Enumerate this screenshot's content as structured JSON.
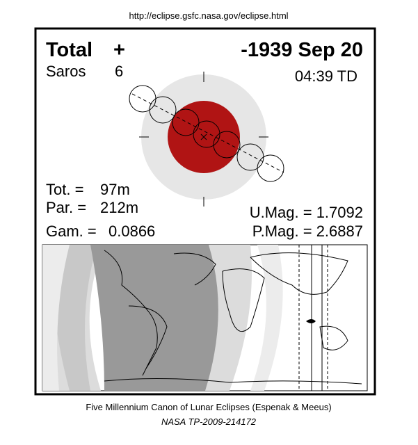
{
  "url": "http://eclipse.gsfc.nasa.gov/eclipse.html",
  "header": {
    "type": "Total",
    "sign": "+",
    "date": "-1939 Sep 20",
    "saros_label": "Saros",
    "saros": "6",
    "time": "04:39 TD"
  },
  "stats": {
    "tot_label": "Tot. =",
    "tot": "97m",
    "par_label": "Par. =",
    "par": "212m",
    "gam_label": "Gam. =",
    "gam": "0.0866",
    "umag": "U.Mag. = 1.7092",
    "pmag": "P.Mag. = 2.6887"
  },
  "footer": {
    "canon": "Five Millennium Canon of Lunar Eclipses (Espenak & Meeus)",
    "ref": "NASA TP-2009-214172"
  }
}
